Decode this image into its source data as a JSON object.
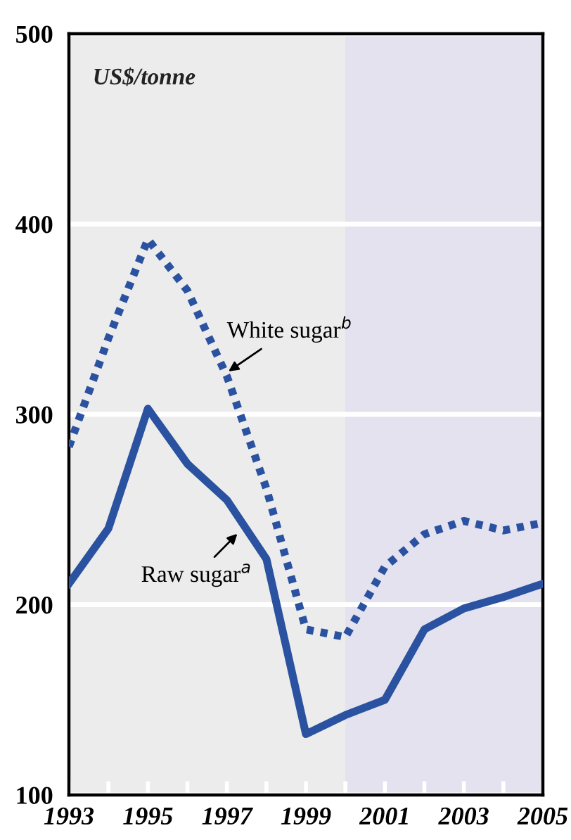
{
  "chart_data": {
    "type": "line",
    "x": [
      1993,
      1994,
      1995,
      1996,
      1997,
      1998,
      1999,
      2000,
      2001,
      2002,
      2003,
      2004,
      2005
    ],
    "series": [
      {
        "color": "#2a52a0",
        "line_style": "dotted",
        "values": [
          283,
          340,
          392,
          365,
          320,
          261,
          187,
          183,
          220,
          237,
          244,
          239,
          243
        ]
      },
      {
        "color": "#2a52a0",
        "line_style": "solid",
        "values": [
          211,
          240,
          303,
          274,
          255,
          224,
          132,
          142,
          150,
          187,
          198,
          204,
          211
        ]
      }
    ],
    "annotations": [
      {
        "text": "White sugar$^{b}$",
        "x": 1997,
        "y": 322
      },
      {
        "text": "Raw sugar$^{a}$",
        "x": 1997.3,
        "y": 238
      }
    ],
    "ylabel": "US$/tonne",
    "xlim": [
      1993,
      2005
    ],
    "ylim": [
      100,
      500
    ],
    "xticks": [
      1993,
      {
        "value": 1994,
        "label": null
      },
      1995,
      {
        "value": 1996,
        "label": null
      },
      1997,
      {
        "value": 1998,
        "label": null
      },
      1999,
      {
        "value": 2000,
        "label": null
      },
      2001,
      {
        "value": 2002,
        "label": null
      },
      2003,
      {
        "value": 2004,
        "label": null
      },
      2005
    ],
    "yticks": [
      100,
      200,
      300,
      400,
      500
    ],
    "bands": [
      {
        "axis": "x",
        "from": 2000,
        "to": 2005,
        "color": "#e4e2ee"
      }
    ],
    "grid": "y",
    "legend": false,
    "marker": "none"
  }
}
